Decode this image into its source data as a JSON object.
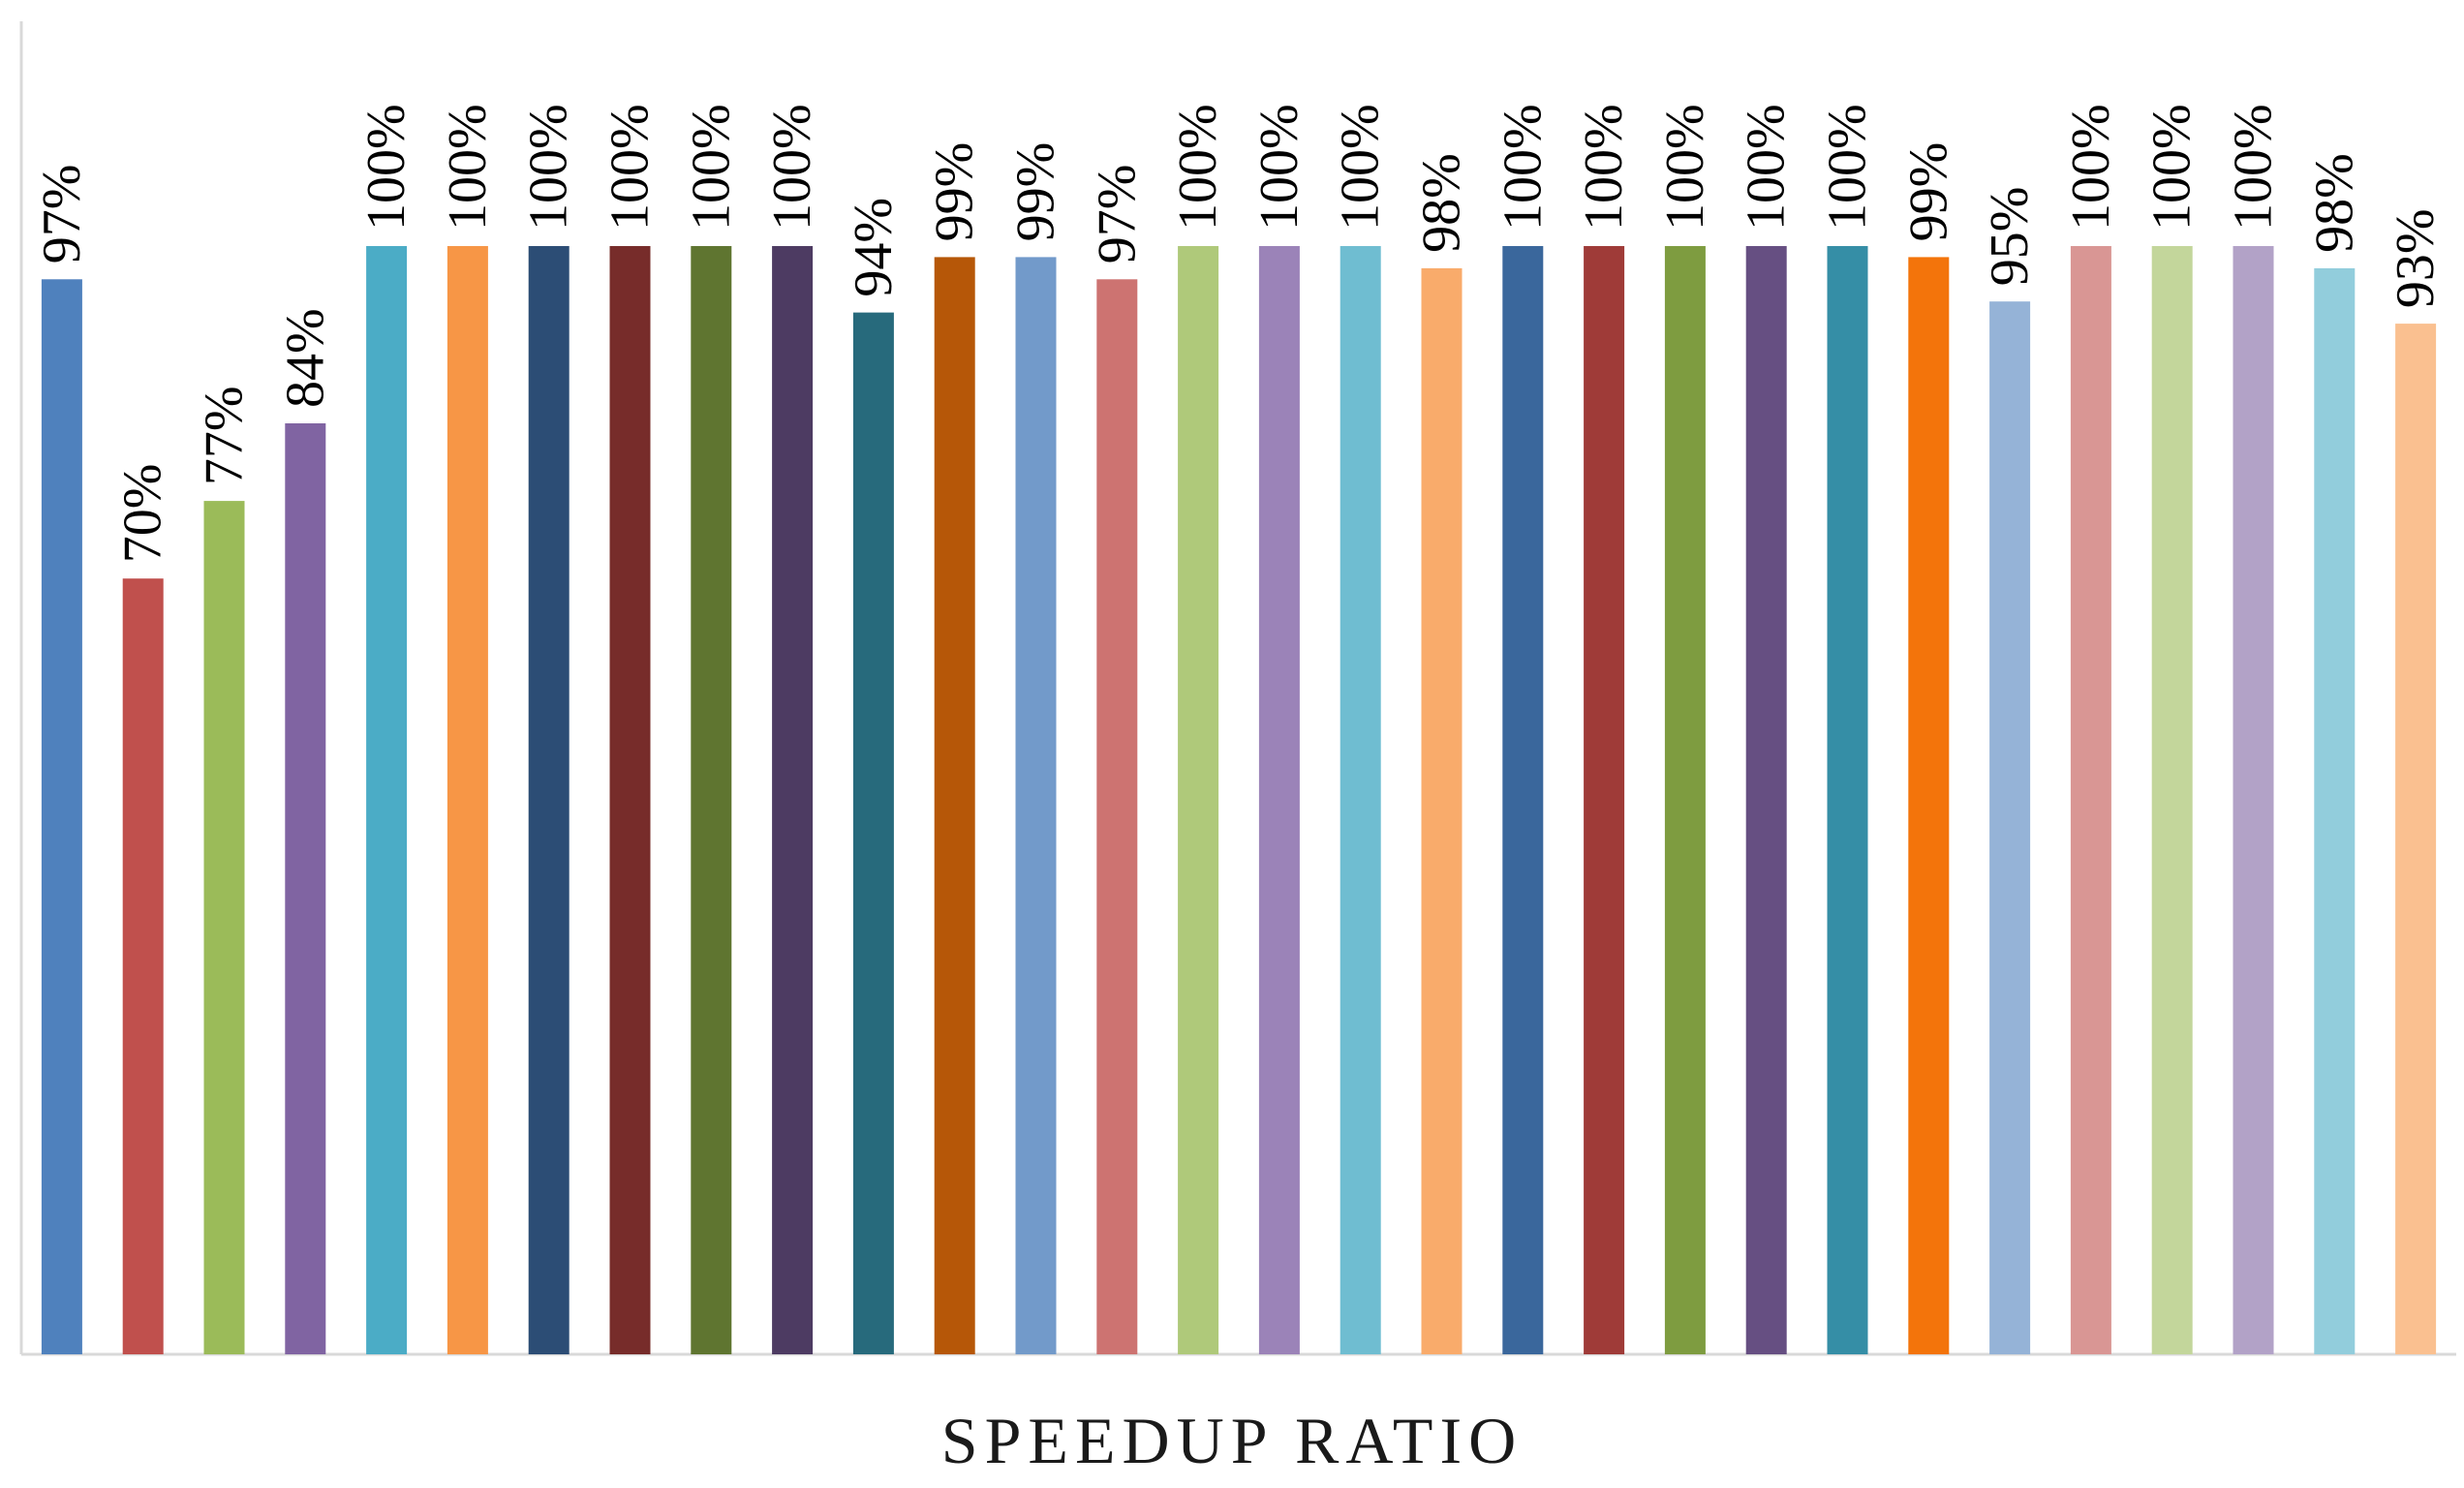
{
  "chart_data": {
    "type": "bar",
    "title": "",
    "xlabel": "SPEEDUP RATIO",
    "ylabel": "",
    "ylim": [
      0,
      100
    ],
    "grid": false,
    "legend": "none",
    "values": [
      97,
      70,
      77,
      84,
      100,
      100,
      100,
      100,
      100,
      100,
      94,
      99,
      99,
      97,
      100,
      100,
      100,
      98,
      100,
      100,
      100,
      100,
      100,
      99,
      95,
      100,
      100,
      100,
      98,
      93
    ],
    "data_labels": [
      "97%",
      "70%",
      "77%",
      "84%",
      "100%",
      "100%",
      "100%",
      "100%",
      "100%",
      "100%",
      "94%",
      "99%",
      "99%",
      "97%",
      "100%",
      "100%",
      "100%",
      "98%",
      "100%",
      "100%",
      "100%",
      "100%",
      "100%",
      "99%",
      "95%",
      "100%",
      "100%",
      "100%",
      "98%",
      "93%"
    ],
    "colors": [
      "#4f81bd",
      "#c0504d",
      "#9bbb59",
      "#8064a2",
      "#4bacc6",
      "#f79646",
      "#2c4d75",
      "#772c2a",
      "#5f7530",
      "#4d3b62",
      "#276a7c",
      "#b65708",
      "#729aca",
      "#cd7371",
      "#afc97a",
      "#9b83b8",
      "#6fbdd1",
      "#f9ab6b",
      "#3a679c",
      "#9f3b38",
      "#7e9c40",
      "#664f82",
      "#358ea6",
      "#f3740b",
      "#95b3d7",
      "#d99694",
      "#c3d69b",
      "#b2a2c7",
      "#92cddc",
      "#fac090"
    ]
  }
}
